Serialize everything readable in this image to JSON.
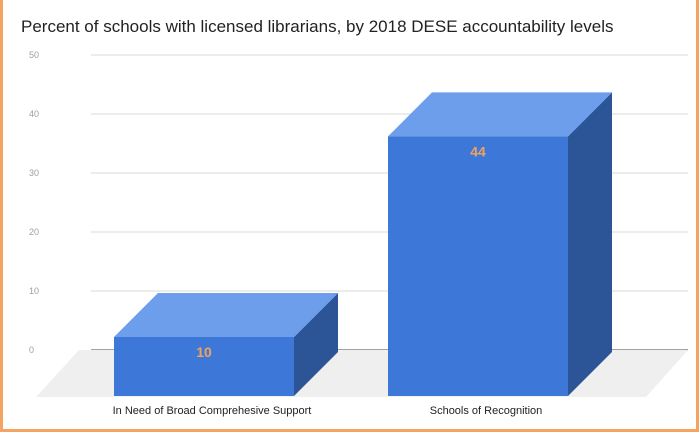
{
  "chart_data": {
    "type": "bar",
    "title": "Percent of schools with licensed librarians, by 2018 DESE accountability levels",
    "categories": [
      "In Need of Broad Comprehesive Support",
      "Schools of Recognition"
    ],
    "values": [
      10,
      44
    ],
    "data_labels": [
      "10",
      "44"
    ],
    "xlabel": "",
    "ylabel": "",
    "ylim": [
      0,
      50
    ],
    "yticks": [
      "0",
      "10",
      "20",
      "30",
      "40",
      "50"
    ],
    "grid": true,
    "legend": "none",
    "style": "3d",
    "colors": {
      "front": "#3d78d8",
      "top": "#6d9eeb",
      "side": "#2b5597",
      "data_label": "#f0a35e",
      "gridline": "#d9d9d9",
      "floor": "#efefef",
      "frame_border": "#f4a460"
    }
  }
}
